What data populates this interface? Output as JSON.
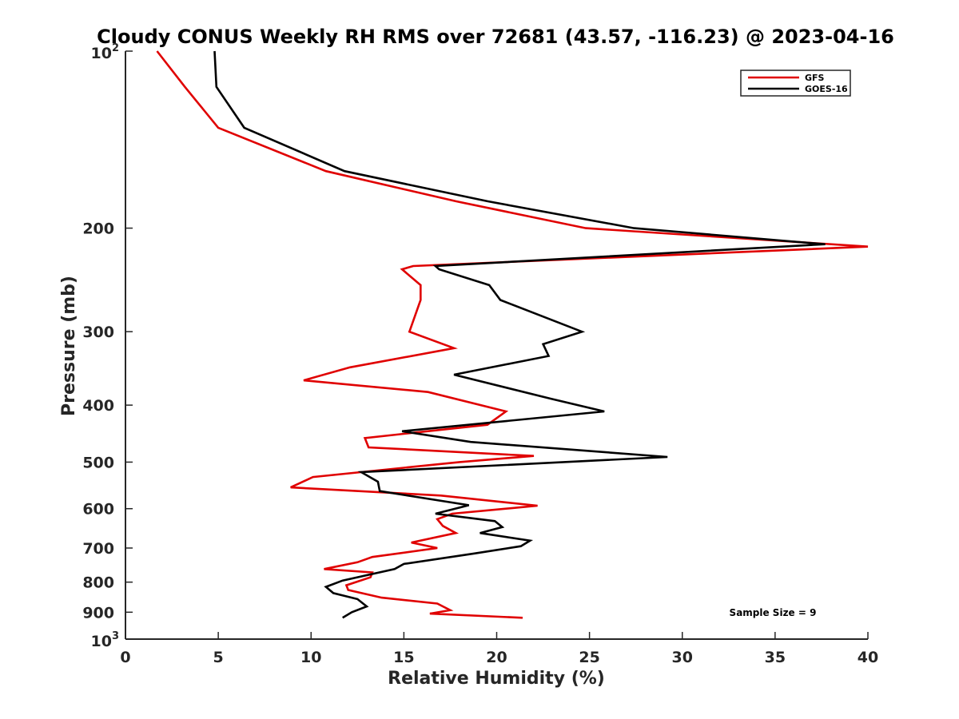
{
  "chart_data": {
    "type": "line",
    "title": "Cloudy CONUS Weekly RH RMS over 72681 (43.57, -116.23) @ 2023-04-16",
    "xlabel": "Relative Humidity (%)",
    "ylabel": "Pressure (mb)",
    "xlim": [
      0,
      40
    ],
    "ylim": [
      100,
      1000
    ],
    "y_scale": "log",
    "y_reversed": true,
    "grid": false,
    "legend_position": "top-right",
    "x_ticks": [
      "0",
      "5",
      "10",
      "15",
      "20",
      "25",
      "30",
      "35",
      "40"
    ],
    "y_ticks": [
      {
        "value": 100,
        "base": "10",
        "exp": "2"
      },
      {
        "value": 200,
        "label": "200"
      },
      {
        "value": 300,
        "label": "300"
      },
      {
        "value": 400,
        "label": "400"
      },
      {
        "value": 500,
        "label": "500"
      },
      {
        "value": 600,
        "label": "600"
      },
      {
        "value": 700,
        "label": "700"
      },
      {
        "value": 800,
        "label": "800"
      },
      {
        "value": 900,
        "label": "900"
      },
      {
        "value": 1000,
        "base": "10",
        "exp": "3"
      }
    ],
    "annotation": "Sample Size = 9",
    "series": [
      {
        "name": "GFS",
        "color": "#e00000",
        "points": [
          [
            1.7,
            100
          ],
          [
            3.2,
            115
          ],
          [
            5.0,
            135
          ],
          [
            10.8,
            160
          ],
          [
            17.8,
            180
          ],
          [
            24.8,
            200
          ],
          [
            40.0,
            215
          ],
          [
            15.5,
            232
          ],
          [
            14.9,
            235
          ],
          [
            15.9,
            250
          ],
          [
            15.9,
            265
          ],
          [
            15.3,
            300
          ],
          [
            17.7,
            320
          ],
          [
            12.1,
            345
          ],
          [
            9.6,
            363
          ],
          [
            16.3,
            380
          ],
          [
            20.5,
            410
          ],
          [
            19.5,
            432
          ],
          [
            12.9,
            455
          ],
          [
            13.1,
            472
          ],
          [
            22.0,
            488
          ],
          [
            18.0,
            500
          ],
          [
            10.1,
            530
          ],
          [
            8.9,
            552
          ],
          [
            17.0,
            570
          ],
          [
            22.2,
            593
          ],
          [
            17.6,
            612
          ],
          [
            16.8,
            625
          ],
          [
            17.1,
            642
          ],
          [
            17.8,
            660
          ],
          [
            15.4,
            685
          ],
          [
            16.8,
            700
          ],
          [
            13.3,
            725
          ],
          [
            12.5,
            740
          ],
          [
            10.7,
            760
          ],
          [
            13.3,
            770
          ],
          [
            13.2,
            785
          ],
          [
            11.9,
            810
          ],
          [
            12.0,
            825
          ],
          [
            13.8,
            850
          ],
          [
            16.8,
            870
          ],
          [
            17.5,
            893
          ],
          [
            16.4,
            905
          ],
          [
            21.4,
            920
          ]
        ]
      },
      {
        "name": "GOES-16",
        "color": "#000000",
        "points": [
          [
            4.8,
            100
          ],
          [
            4.9,
            115
          ],
          [
            6.4,
            135
          ],
          [
            11.8,
            160
          ],
          [
            19.5,
            180
          ],
          [
            27.4,
            200
          ],
          [
            37.7,
            213
          ],
          [
            16.7,
            232
          ],
          [
            16.9,
            235
          ],
          [
            19.6,
            250
          ],
          [
            20.2,
            265
          ],
          [
            24.6,
            300
          ],
          [
            22.5,
            315
          ],
          [
            22.8,
            330
          ],
          [
            17.7,
            355
          ],
          [
            22.9,
            390
          ],
          [
            25.8,
            410
          ],
          [
            14.9,
            443
          ],
          [
            18.6,
            462
          ],
          [
            29.2,
            490
          ],
          [
            12.7,
            520
          ],
          [
            13.6,
            540
          ],
          [
            13.7,
            560
          ],
          [
            18.5,
            592
          ],
          [
            16.7,
            612
          ],
          [
            19.9,
            630
          ],
          [
            20.3,
            645
          ],
          [
            19.1,
            660
          ],
          [
            21.8,
            680
          ],
          [
            21.3,
            695
          ],
          [
            18.8,
            715
          ],
          [
            15.0,
            745
          ],
          [
            14.5,
            760
          ],
          [
            11.7,
            795
          ],
          [
            10.8,
            815
          ],
          [
            11.2,
            835
          ],
          [
            12.5,
            855
          ],
          [
            13.0,
            880
          ],
          [
            12.2,
            900
          ],
          [
            11.7,
            920
          ]
        ]
      }
    ]
  }
}
